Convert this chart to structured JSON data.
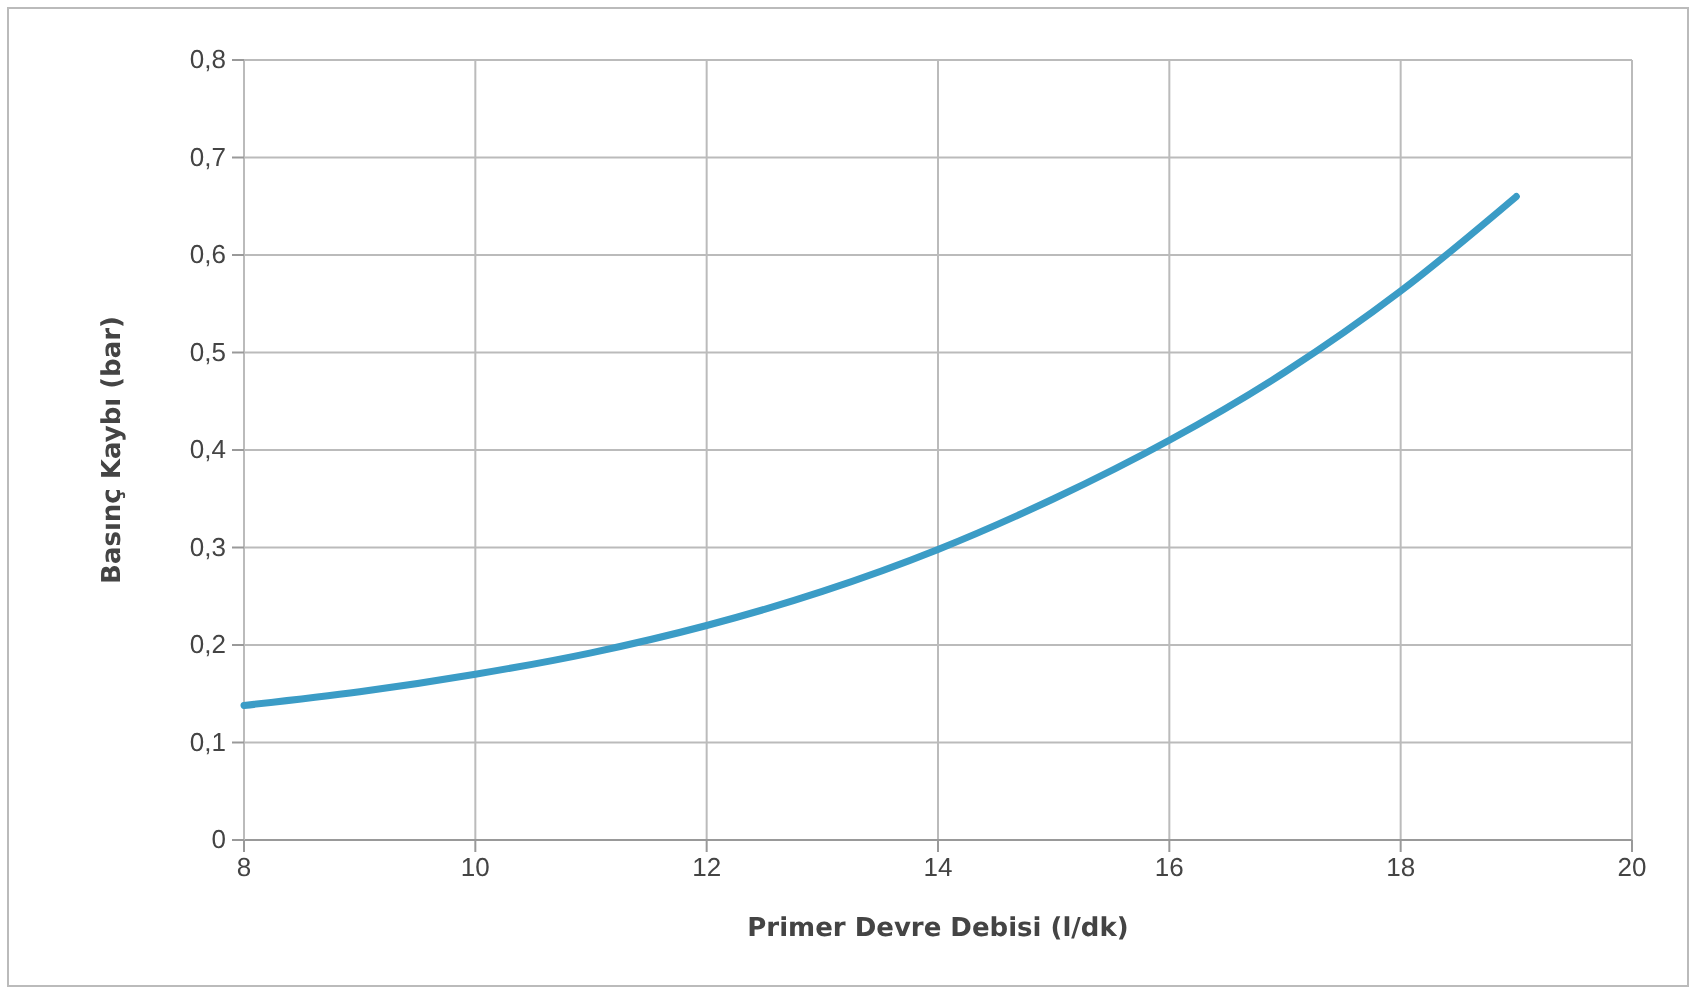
{
  "chart_data": {
    "type": "line",
    "xlabel": "Primer Devre Debisi (l/dk)",
    "ylabel": "Basınç Kaybı (bar)",
    "x": [
      8,
      9,
      10,
      11,
      12,
      13,
      14,
      15,
      16,
      17,
      18,
      19
    ],
    "series": [
      {
        "color": "#3b9cc6",
        "values": [
          0.138,
          0.152,
          0.17,
          0.192,
          0.22,
          0.255,
          0.298,
          0.35,
          0.41,
          0.48,
          0.563,
          0.66
        ]
      }
    ],
    "xlim": [
      8,
      20
    ],
    "xticks": [
      8,
      10,
      12,
      14,
      16,
      18,
      20
    ],
    "ylim": [
      0,
      0.8
    ],
    "yticks": [
      0,
      {
        "value": 0.1,
        "label": "0,1"
      },
      {
        "value": 0.2,
        "label": "0,2"
      },
      {
        "value": 0.3,
        "label": "0,3"
      },
      {
        "value": 0.4,
        "label": "0,4"
      },
      {
        "value": 0.5,
        "label": "0,5"
      },
      {
        "value": 0.6,
        "label": "0,6"
      },
      {
        "value": 0.7,
        "label": "0,7"
      },
      {
        "value": 0.8,
        "label": "0,8"
      }
    ],
    "grid": true,
    "marker": "none",
    "line_style": "solid"
  }
}
